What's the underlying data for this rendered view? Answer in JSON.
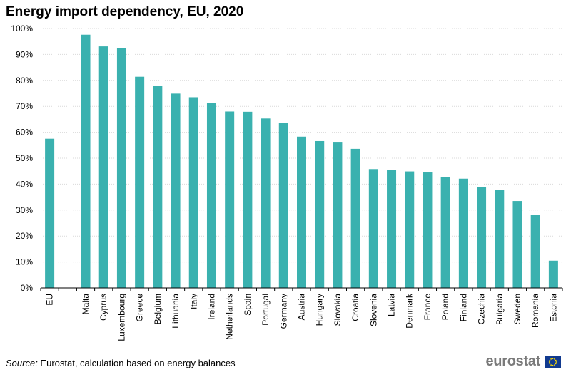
{
  "chart_data": {
    "type": "bar",
    "title": "Energy import dependency, EU, 2020",
    "xlabel": "",
    "ylabel": "",
    "ylim": [
      0,
      100
    ],
    "yticks": [
      "0%",
      "10%",
      "20%",
      "30%",
      "40%",
      "50%",
      "60%",
      "70%",
      "80%",
      "90%",
      "100%"
    ],
    "categories": [
      "EU",
      "",
      "Malta",
      "Cyprus",
      "Luxembourg",
      "Greece",
      "Belgium",
      "Lithuania",
      "Italy",
      "Ireland",
      "Netherlands",
      "Spain",
      "Portugal",
      "Germany",
      "Austria",
      "Hungary",
      "Slovakia",
      "Croatia",
      "Slovenia",
      "Latvia",
      "Denmark",
      "France",
      "Poland",
      "Finland",
      "Czechia",
      "Bulgaria",
      "Sweden",
      "Romania",
      "Estonia"
    ],
    "values": [
      57.5,
      null,
      97.6,
      93.1,
      92.5,
      81.4,
      78.0,
      74.9,
      73.5,
      71.3,
      68.0,
      67.9,
      65.3,
      63.7,
      58.3,
      56.6,
      56.3,
      53.6,
      45.8,
      45.5,
      44.9,
      44.5,
      42.8,
      42.1,
      38.9,
      37.9,
      33.5,
      28.2,
      10.5
    ],
    "bar_color": "#3ab1af",
    "grid": true
  },
  "footer": {
    "source_label": "Source:",
    "source_text": " Eurostat, calculation based on energy balances",
    "brand": "eurostat"
  },
  "colors": {
    "flag_blue": "#113a8f",
    "flag_star": "#ffde00"
  }
}
